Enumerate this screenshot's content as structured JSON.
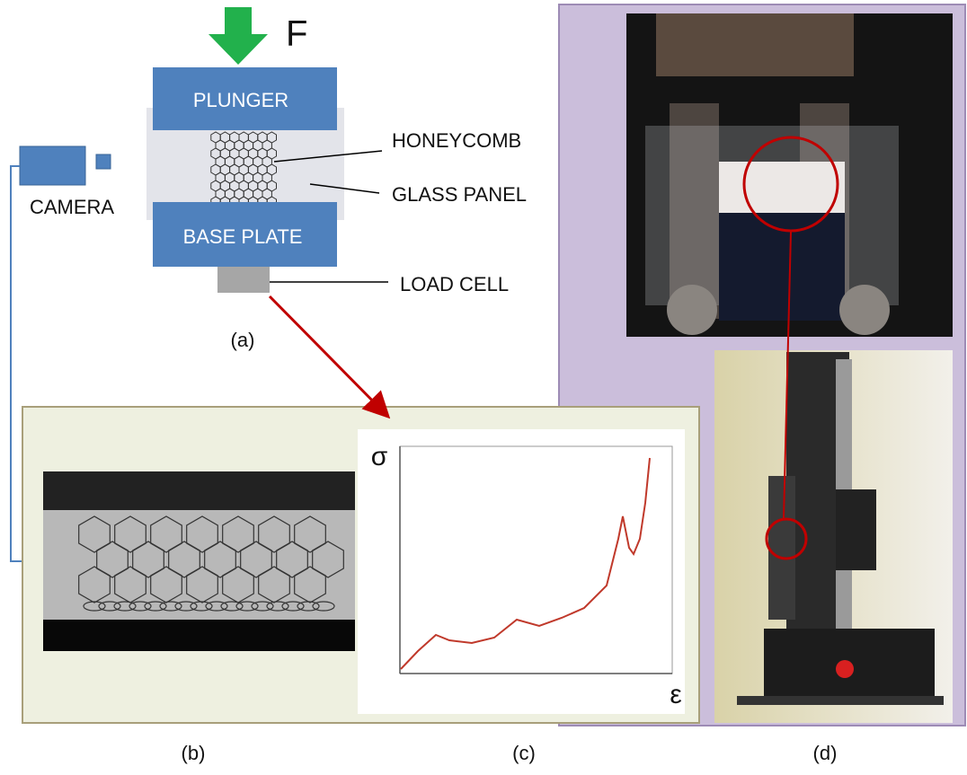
{
  "force": "F",
  "diagram": {
    "plunger": "PLUNGER",
    "honeycomb": "HONEYCOMB",
    "glass_panel": "GLASS PANEL",
    "base_plate": "BASE PLATE",
    "load_cell": "LOAD CELL",
    "camera": "CAMERA"
  },
  "plot": {
    "y_axis": "σ",
    "x_axis": "ε"
  },
  "captions": {
    "a": "(a)",
    "b": "(b)",
    "c": "(c)",
    "d": "(d)"
  }
}
